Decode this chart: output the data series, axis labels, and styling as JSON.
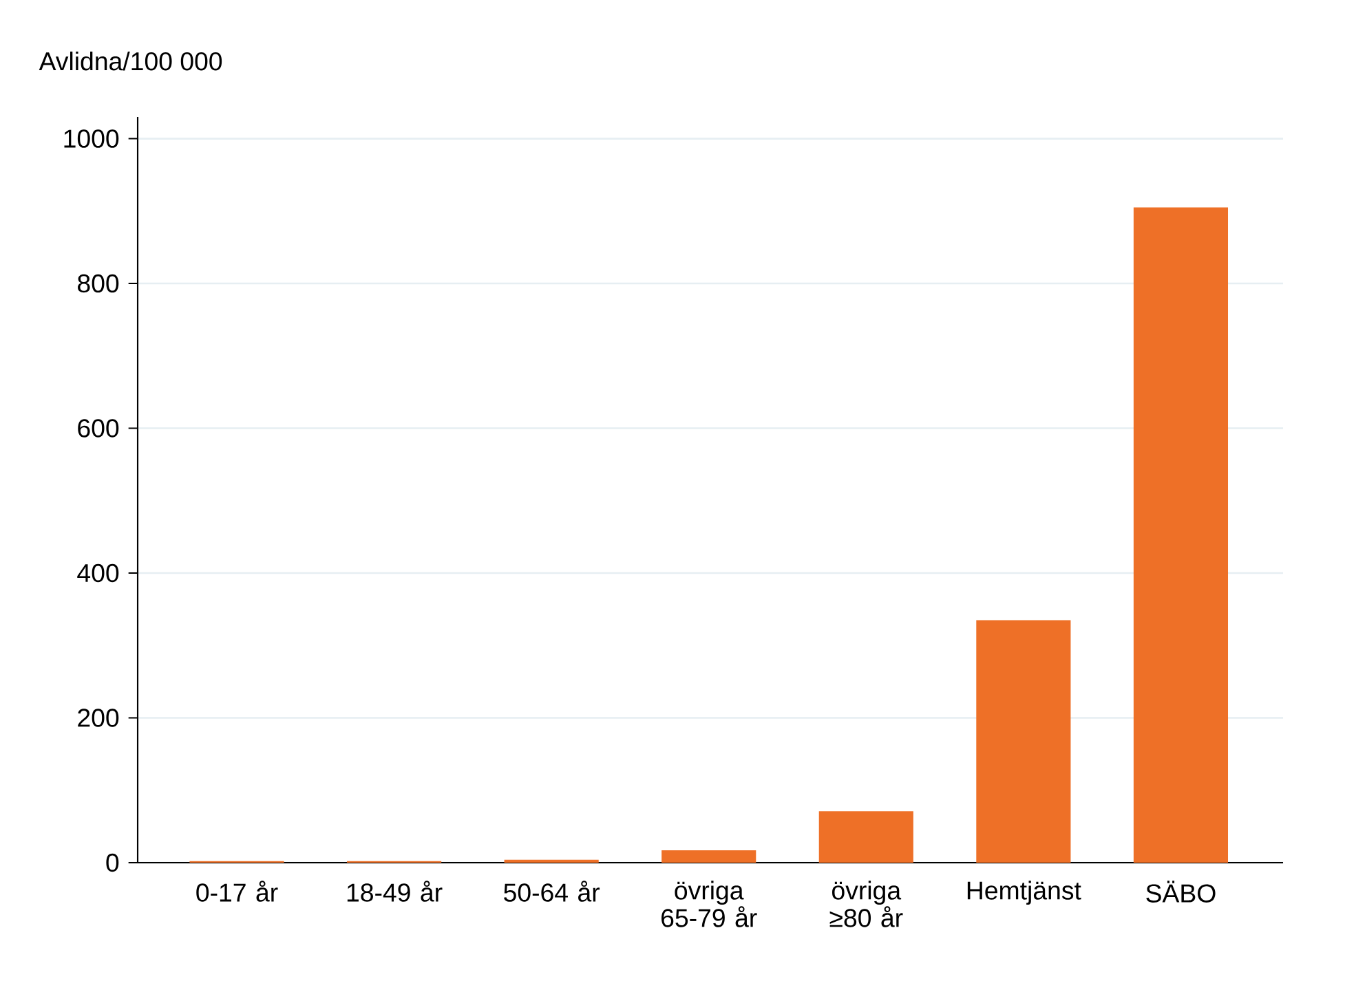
{
  "chart_data": {
    "type": "bar",
    "ylabel": "Avlidna/100 000",
    "categories": [
      "0-17 år",
      "18-49 år",
      "50-64 år",
      "övriga 65-79 år",
      "övriga ≥80 år",
      "Hemtjänst",
      "SÄBO"
    ],
    "values": [
      2,
      2,
      4,
      17,
      71,
      335,
      905
    ],
    "color": "#ee7027",
    "ylim": [
      0,
      1030
    ],
    "yticks": [
      0,
      200,
      400,
      600,
      800,
      1000
    ],
    "grid": "y"
  }
}
